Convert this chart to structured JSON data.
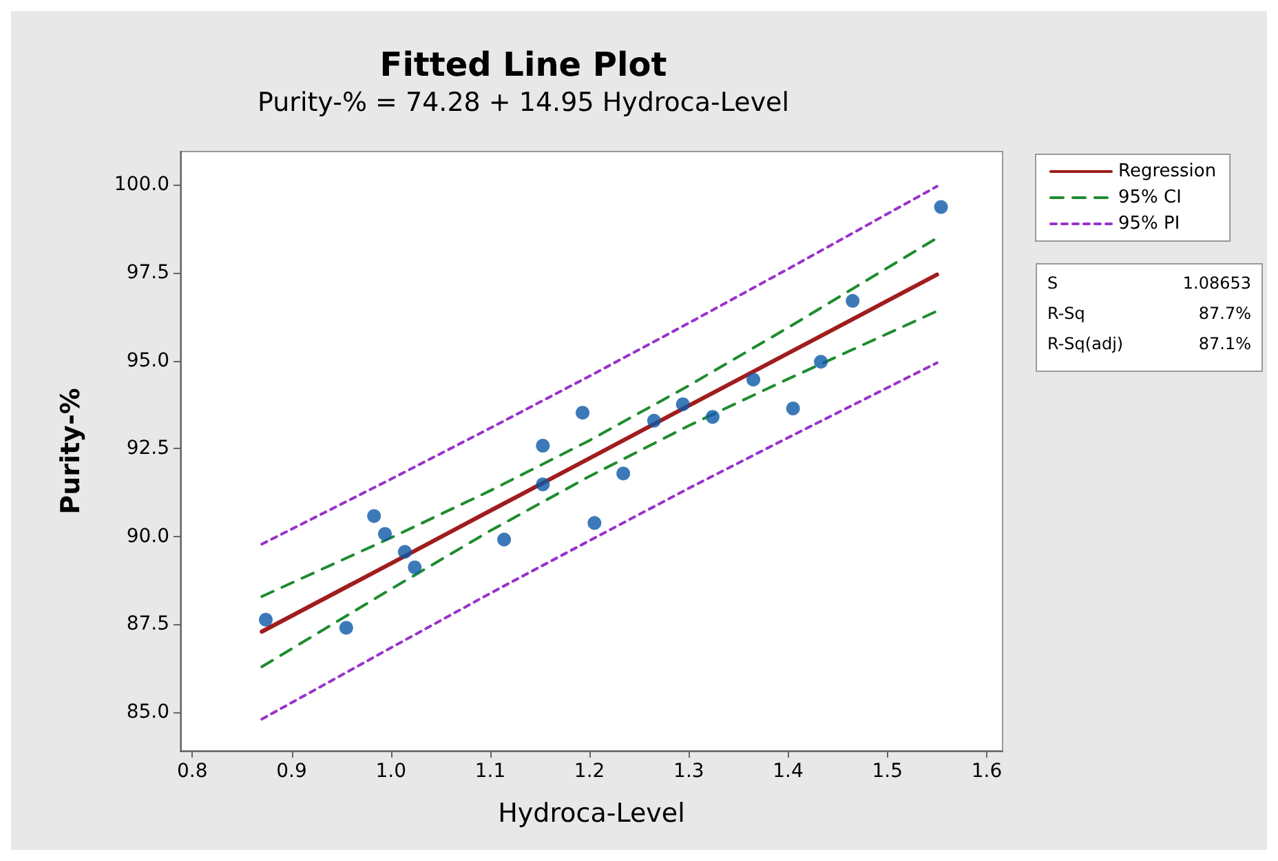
{
  "chart_data": {
    "type": "scatter",
    "title": "Fitted Line Plot",
    "subtitle": "Purity-% = 74.28 + 14.95 Hydroca-Level",
    "xlabel": "Hydroca-Level",
    "ylabel": "Purity-%",
    "xlim": [
      0.788,
      1.616
    ],
    "xticks": [
      0.8,
      0.9,
      {
        "value": 1,
        "label": "1.0"
      },
      1.1,
      1.2,
      1.3,
      1.4,
      1.5,
      1.6
    ],
    "ylim": [
      83.9,
      100.95
    ],
    "yticks": [
      {
        "value": 85,
        "label": "85.0"
      },
      87.5,
      {
        "value": 90,
        "label": "90.0"
      },
      92.5,
      {
        "value": 95,
        "label": "95.0"
      },
      97.5,
      {
        "value": 100,
        "label": "100.0"
      }
    ],
    "grid": false,
    "legend": "top right",
    "series": [
      {
        "marker": "circle",
        "color": "#0b58a8",
        "x": [
          0.874,
          0.955,
          0.983,
          0.994,
          1.014,
          1.024,
          1.114,
          1.153,
          1.153,
          1.193,
          1.205,
          1.234,
          1.265,
          1.294,
          1.324,
          1.365,
          1.405,
          1.433,
          1.465,
          1.554
        ],
        "values": [
          87.63,
          87.4,
          90.58,
          90.07,
          89.56,
          89.12,
          89.91,
          92.58,
          91.48,
          93.52,
          90.38,
          91.79,
          93.29,
          93.76,
          93.4,
          94.46,
          93.64,
          94.97,
          96.7,
          99.37
        ]
      },
      {
        "type": "line",
        "name": "Regression",
        "marker": "none",
        "line_style": "solid",
        "color": "#a01d1d",
        "x": [
          0.87,
          1.0,
          1.1,
          1.2,
          1.3,
          1.4,
          1.55
        ],
        "values": [
          87.29,
          89.23,
          90.73,
          92.22,
          93.72,
          95.21,
          97.45
        ]
      },
      {
        "type": "line",
        "name": "95% CI",
        "marker": "none",
        "line_style": "dashed",
        "color": "#1e8c2e",
        "x": [
          0.87,
          1.0,
          1.1,
          1.2,
          1.3,
          1.4,
          1.55
        ],
        "values": [
          88.29,
          89.96,
          91.3,
          92.73,
          94.29,
          95.94,
          98.49
        ]
      },
      {
        "type": "line",
        "marker": "none",
        "line_style": "dashed",
        "color": "#1e8c2e",
        "x": [
          0.87,
          1.0,
          1.1,
          1.2,
          1.3,
          1.4,
          1.55
        ],
        "values": [
          86.29,
          88.5,
          90.16,
          91.71,
          93.15,
          94.48,
          96.41
        ]
      },
      {
        "type": "line",
        "name": "95% PI",
        "marker": "none",
        "line_style": "dotted",
        "color": "#9932cc",
        "x": [
          0.87,
          1.0,
          1.1,
          1.2,
          1.3,
          1.4,
          1.55
        ],
        "values": [
          89.78,
          91.63,
          93.08,
          94.56,
          96.07,
          97.61,
          99.96
        ]
      },
      {
        "type": "line",
        "marker": "none",
        "line_style": "dotted",
        "color": "#9932cc",
        "x": [
          0.87,
          1.0,
          1.1,
          1.2,
          1.3,
          1.4,
          1.55
        ],
        "values": [
          84.8,
          86.83,
          88.38,
          89.88,
          91.37,
          92.81,
          94.94
        ]
      }
    ],
    "annotations": [
      "S 1.08653",
      "R-Sq 87.7%",
      "R-Sq(adj) 87.1%"
    ]
  }
}
